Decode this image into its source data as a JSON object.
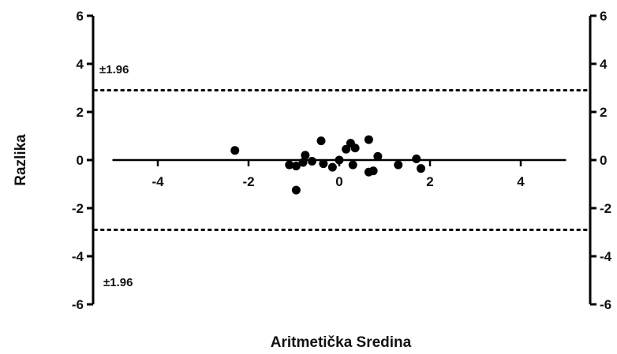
{
  "chart_data": {
    "type": "scatter",
    "title": "",
    "xlabel": "Aritmetička Sredina",
    "ylabel": "Razlika",
    "xlim": [
      -6,
      6
    ],
    "ylim": [
      -6,
      6
    ],
    "x_ticks": [
      -4,
      -2,
      0,
      2,
      4
    ],
    "y_ticks": [
      -6,
      -4,
      -2,
      0,
      2,
      4,
      6
    ],
    "grid": false,
    "legend": "none",
    "mean_line": {
      "y": 0,
      "x_range": [
        -5,
        5
      ]
    },
    "limits_of_agreement": [
      {
        "y": 2.9,
        "label": "±1.96"
      },
      {
        "y": -2.9,
        "label": "±1.96"
      }
    ],
    "series": [
      {
        "points": [
          {
            "x": -2.3,
            "y": 0.4
          },
          {
            "x": -1.1,
            "y": -0.2
          },
          {
            "x": -0.95,
            "y": -0.25
          },
          {
            "x": -0.95,
            "y": -1.25
          },
          {
            "x": -0.8,
            "y": -0.1
          },
          {
            "x": -0.75,
            "y": 0.2
          },
          {
            "x": -0.6,
            "y": -0.05
          },
          {
            "x": -0.4,
            "y": 0.8
          },
          {
            "x": -0.35,
            "y": -0.15
          },
          {
            "x": -0.15,
            "y": -0.3
          },
          {
            "x": 0.0,
            "y": 0.0
          },
          {
            "x": 0.15,
            "y": 0.45
          },
          {
            "x": 0.25,
            "y": 0.7
          },
          {
            "x": 0.3,
            "y": -0.2
          },
          {
            "x": 0.35,
            "y": 0.5
          },
          {
            "x": 0.65,
            "y": -0.5
          },
          {
            "x": 0.65,
            "y": 0.85
          },
          {
            "x": 0.75,
            "y": -0.45
          },
          {
            "x": 0.85,
            "y": 0.15
          },
          {
            "x": 1.3,
            "y": -0.2
          },
          {
            "x": 1.7,
            "y": 0.05
          },
          {
            "x": 1.8,
            "y": -0.35
          }
        ]
      }
    ]
  }
}
